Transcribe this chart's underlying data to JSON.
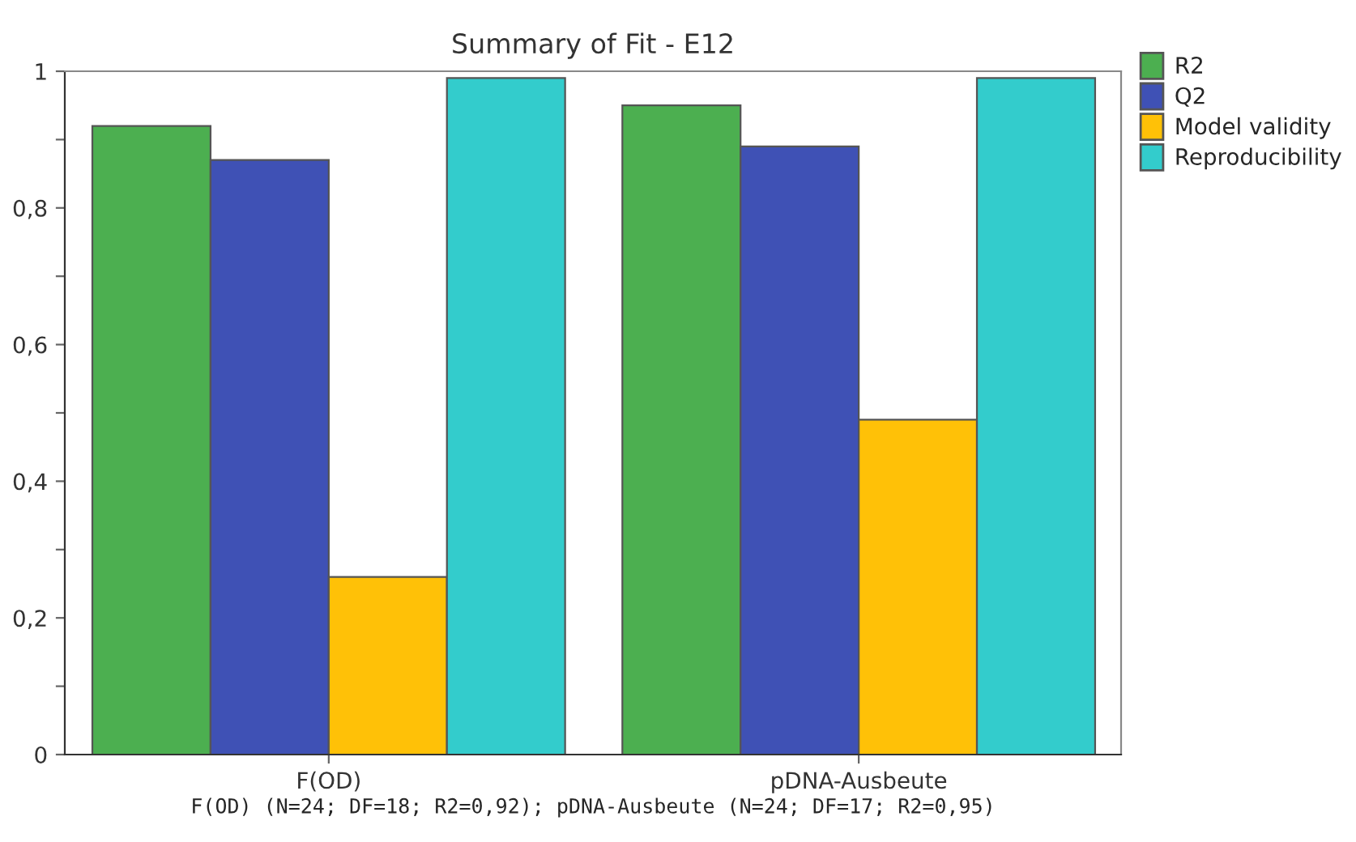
{
  "chart_data": {
    "type": "bar",
    "title": "Summary of Fit - E12",
    "xlabel": "F(OD) (N=24; DF=18; R2=0,92); pDNA-Ausbeute (N=24; DF=17; R2=0,95)",
    "categories": [
      "F(OD)",
      "pDNA-Ausbeute"
    ],
    "series": [
      {
        "name": "R2",
        "color": "#4caf50",
        "values": [
          0.92,
          0.95
        ]
      },
      {
        "name": "Q2",
        "color": "#3f51b5",
        "values": [
          0.87,
          0.89
        ]
      },
      {
        "name": "Model validity",
        "color": "#ffc107",
        "values": [
          0.26,
          0.49
        ]
      },
      {
        "name": "Reproducibility",
        "color": "#33cccc",
        "values": [
          0.99,
          0.99
        ]
      }
    ],
    "ylim": [
      0,
      1
    ],
    "yticks": [
      0,
      {
        "value": 0.1,
        "label": null
      },
      {
        "value": 0.2,
        "label": "0,2"
      },
      {
        "value": 0.3,
        "label": null
      },
      {
        "value": 0.4,
        "label": "0,4"
      },
      {
        "value": 0.5,
        "label": null
      },
      {
        "value": 0.6,
        "label": "0,6"
      },
      {
        "value": 0.7,
        "label": null
      },
      {
        "value": 0.8,
        "label": "0,8"
      },
      {
        "value": 0.9,
        "label": null
      },
      1
    ],
    "grid": false,
    "legend": "top right"
  }
}
